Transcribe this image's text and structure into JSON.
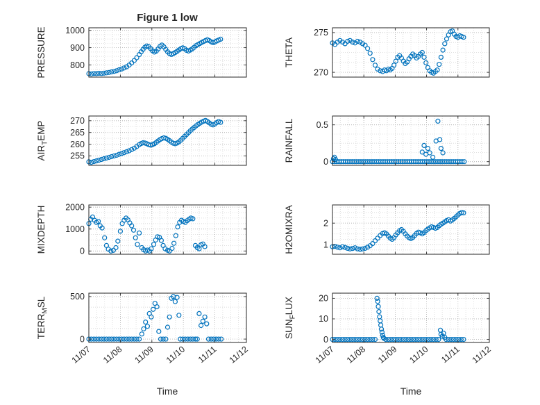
{
  "figure": {
    "title": "Figure 1 low",
    "marker_color": "#0072BD",
    "grid": true,
    "minor_grid": true
  },
  "x_axis": {
    "label": "Time",
    "xlim": [
      0,
      5
    ],
    "minor_step": 0.25,
    "tick_positions": [
      0,
      1,
      2,
      3,
      4,
      5
    ],
    "tick_labels": [
      "11/07",
      "11/08",
      "11/09",
      "11/10",
      "11/11",
      "11/12"
    ]
  },
  "chart_data": [
    {
      "type": "scatter",
      "name": "PRESSURE",
      "ylabel": {
        "pre": "PRESSURE",
        "sub": "",
        "post": ""
      },
      "ylim": [
        730,
        1015
      ],
      "yticks": [
        800,
        900,
        1000
      ],
      "ytick_labels": [
        "800",
        "900",
        "1000"
      ],
      "yminor_step": 25,
      "x": [
        0,
        0.08,
        0.16,
        0.24,
        0.32,
        0.4,
        0.48,
        0.56,
        0.64,
        0.72,
        0.8,
        0.88,
        0.96,
        1.04,
        1.12,
        1.2,
        1.28,
        1.36,
        1.44,
        1.52,
        1.6,
        1.66,
        1.72,
        1.78,
        1.84,
        1.9,
        1.96,
        2.02,
        2.08,
        2.14,
        2.2,
        2.26,
        2.32,
        2.38,
        2.44,
        2.5,
        2.56,
        2.62,
        2.68,
        2.74,
        2.8,
        2.86,
        2.92,
        2.98,
        3.04,
        3.1,
        3.16,
        3.22,
        3.28,
        3.34,
        3.4,
        3.46,
        3.52,
        3.58,
        3.64,
        3.7,
        3.76,
        3.82,
        3.88,
        3.94,
        4,
        4.06,
        4.12,
        4.18
      ],
      "y": [
        750,
        748,
        751,
        750,
        752,
        751,
        753,
        755,
        757,
        760,
        763,
        767,
        772,
        777,
        783,
        790,
        800,
        812,
        826,
        842,
        860,
        876,
        890,
        903,
        910,
        906,
        895,
        882,
        875,
        880,
        893,
        908,
        915,
        905,
        890,
        876,
        866,
        861,
        866,
        872,
        879,
        887,
        894,
        899,
        894,
        885,
        881,
        886,
        893,
        902,
        912,
        918,
        924,
        930,
        936,
        941,
        946,
        941,
        934,
        929,
        933,
        939,
        944,
        949
      ]
    },
    {
      "type": "scatter",
      "name": "AIR_TEMP",
      "ylabel": {
        "pre": "AIR",
        "sub": "T",
        "post": "EMP"
      },
      "ylim": [
        251,
        272
      ],
      "yticks": [
        255,
        260,
        265,
        270
      ],
      "ytick_labels": [
        "255",
        "260",
        "265",
        "270"
      ],
      "yminor_step": 2.5,
      "x": [
        0,
        0.08,
        0.16,
        0.24,
        0.32,
        0.4,
        0.48,
        0.56,
        0.64,
        0.72,
        0.8,
        0.88,
        0.96,
        1.04,
        1.12,
        1.2,
        1.28,
        1.36,
        1.44,
        1.52,
        1.6,
        1.66,
        1.72,
        1.78,
        1.84,
        1.9,
        1.96,
        2.02,
        2.08,
        2.14,
        2.2,
        2.26,
        2.32,
        2.38,
        2.44,
        2.5,
        2.56,
        2.62,
        2.68,
        2.74,
        2.8,
        2.86,
        2.92,
        2.98,
        3.04,
        3.1,
        3.16,
        3.22,
        3.28,
        3.34,
        3.4,
        3.46,
        3.52,
        3.58,
        3.64,
        3.7,
        3.76,
        3.82,
        3.88,
        3.94,
        4,
        4.06,
        4.12,
        4.18
      ],
      "y": [
        252.5,
        252.3,
        252.6,
        252.9,
        253.2,
        253.5,
        253.8,
        254.1,
        254.4,
        254.7,
        255,
        255.3,
        255.7,
        256,
        256.4,
        256.8,
        257.2,
        257.7,
        258.3,
        259,
        259.8,
        260.3,
        260.6,
        260.5,
        260.2,
        259.8,
        259.6,
        259.8,
        260.2,
        260.8,
        261.4,
        262,
        262.4,
        262.7,
        262.5,
        262.1,
        261.5,
        260.9,
        260.4,
        260.2,
        260.5,
        261,
        261.7,
        262.5,
        263.3,
        264.1,
        264.9,
        265.7,
        266.4,
        267.1,
        267.8,
        268.4,
        268.9,
        269.4,
        269.8,
        270.1,
        269.7,
        269.1,
        268.5,
        268.2,
        268.6,
        269.2,
        269.7,
        269.3
      ]
    },
    {
      "type": "scatter",
      "name": "MIXDEPTH",
      "ylabel": {
        "pre": "MIXDEPTH",
        "sub": "",
        "post": ""
      },
      "ylim": [
        -150,
        2100
      ],
      "yticks": [
        0,
        1000,
        2000
      ],
      "ytick_labels": [
        "0",
        "1000",
        "2000"
      ],
      "yminor_step": 250,
      "x": [
        0,
        0.06,
        0.12,
        0.18,
        0.24,
        0.3,
        0.36,
        0.42,
        0.5,
        0.56,
        0.62,
        0.7,
        0.78,
        0.86,
        0.92,
        1,
        1.06,
        1.12,
        1.18,
        1.24,
        1.3,
        1.36,
        1.42,
        1.48,
        1.54,
        1.6,
        1.68,
        1.74,
        1.8,
        1.86,
        1.92,
        1.98,
        2.06,
        2.12,
        2.18,
        2.24,
        2.3,
        2.36,
        2.42,
        2.5,
        2.56,
        2.64,
        2.7,
        2.76,
        2.82,
        2.88,
        2.94,
        3,
        3.06,
        3.12,
        3.18,
        3.24,
        3.3,
        3.38,
        3.44,
        3.5,
        3.56,
        3.62,
        3.68
      ],
      "y": [
        1250,
        1450,
        1550,
        1400,
        1300,
        1350,
        1150,
        1050,
        600,
        250,
        80,
        0,
        30,
        150,
        450,
        900,
        1250,
        1400,
        1500,
        1420,
        1280,
        1150,
        950,
        600,
        300,
        820,
        150,
        60,
        0,
        40,
        0,
        100,
        300,
        500,
        650,
        620,
        480,
        250,
        100,
        30,
        0,
        120,
        350,
        700,
        1100,
        1300,
        1400,
        1350,
        1300,
        1380,
        1450,
        1500,
        1470,
        250,
        150,
        100,
        280,
        320,
        200
      ]
    },
    {
      "type": "scatter",
      "name": "TERR_MSL",
      "ylabel": {
        "pre": "TERR",
        "sub": "M",
        "post": "SL"
      },
      "ylim": [
        -40,
        540
      ],
      "yticks": [
        0,
        500
      ],
      "ytick_labels": [
        "0",
        "500"
      ],
      "yminor_step": 125,
      "x": [
        0,
        0.08,
        0.16,
        0.24,
        0.32,
        0.4,
        0.48,
        0.56,
        0.64,
        0.72,
        0.8,
        0.88,
        0.96,
        1.04,
        1.12,
        1.2,
        1.28,
        1.36,
        1.44,
        1.52,
        1.6,
        1.68,
        1.74,
        1.8,
        1.86,
        1.92,
        1.98,
        2.04,
        2.1,
        2.16,
        2.22,
        2.28,
        2.36,
        2.44,
        2.5,
        2.56,
        2.62,
        2.68,
        2.74,
        2.8,
        2.86,
        2.9,
        2.98,
        3.06,
        3.14,
        3.22,
        3.3,
        3.38,
        3.44,
        3.5,
        3.56,
        3.62,
        3.68,
        3.74,
        3.8,
        3.88,
        3.96,
        4.04,
        4.12,
        4.2
      ],
      "y": [
        0,
        0,
        0,
        0,
        0,
        0,
        0,
        0,
        0,
        0,
        0,
        0,
        0,
        0,
        0,
        0,
        0,
        0,
        0,
        0,
        0,
        60,
        120,
        200,
        150,
        300,
        260,
        350,
        420,
        380,
        90,
        0,
        0,
        0,
        140,
        260,
        480,
        500,
        440,
        490,
        280,
        0,
        0,
        0,
        0,
        0,
        0,
        0,
        0,
        300,
        160,
        210,
        260,
        180,
        0,
        0,
        0,
        0,
        0,
        0
      ]
    },
    {
      "type": "scatter",
      "name": "THETA",
      "ylabel": {
        "pre": "THETA",
        "sub": "",
        "post": ""
      },
      "ylim": [
        269.4,
        275.6
      ],
      "yticks": [
        270,
        275
      ],
      "ytick_labels": [
        "270",
        "275"
      ],
      "yminor_step": 1.25,
      "x": [
        0,
        0.08,
        0.16,
        0.24,
        0.32,
        0.4,
        0.48,
        0.56,
        0.64,
        0.72,
        0.8,
        0.88,
        0.96,
        1.04,
        1.12,
        1.2,
        1.28,
        1.36,
        1.44,
        1.52,
        1.6,
        1.66,
        1.72,
        1.78,
        1.84,
        1.9,
        1.96,
        2.02,
        2.08,
        2.14,
        2.2,
        2.26,
        2.32,
        2.38,
        2.44,
        2.5,
        2.56,
        2.62,
        2.68,
        2.74,
        2.8,
        2.86,
        2.92,
        2.98,
        3.04,
        3.1,
        3.16,
        3.22,
        3.28,
        3.34,
        3.4,
        3.46,
        3.52,
        3.58,
        3.64,
        3.7,
        3.76,
        3.82,
        3.88,
        3.94,
        4,
        4.06,
        4.12,
        4.18
      ],
      "y": [
        273.7,
        273.5,
        273.8,
        274,
        273.8,
        273.6,
        273.9,
        274,
        273.8,
        273.7,
        273.9,
        273.8,
        273.6,
        273.4,
        273,
        272.4,
        271.6,
        270.9,
        270.4,
        270.2,
        270.1,
        270.3,
        270.2,
        270.4,
        270.3,
        270.5,
        270.9,
        271.4,
        271.9,
        272.1,
        271.8,
        271.4,
        271.1,
        271.3,
        271.7,
        272,
        272.3,
        272.1,
        271.8,
        272,
        272.3,
        272.5,
        271.9,
        271.2,
        270.6,
        270.2,
        270,
        269.9,
        270.1,
        270.3,
        271,
        271.9,
        272.8,
        273.6,
        274.2,
        274.7,
        275.1,
        275.2,
        274.8,
        274.5,
        274.4,
        274.6,
        274.5,
        274.4
      ]
    },
    {
      "type": "scatter",
      "name": "RAINFALL",
      "ylabel": {
        "pre": "RAINFALL",
        "sub": "",
        "post": ""
      },
      "ylim": [
        -0.05,
        0.62
      ],
      "yticks": [
        0,
        0.5
      ],
      "ytick_labels": [
        "0",
        "0.5"
      ],
      "yminor_step": 0.125,
      "x": [
        0,
        0.07,
        0.14,
        0.21,
        0.28,
        0.35,
        0.42,
        0.49,
        0.56,
        0.63,
        0.7,
        0.77,
        0.84,
        0.91,
        0.98,
        1.05,
        1.12,
        1.19,
        1.26,
        1.33,
        1.4,
        1.47,
        1.54,
        1.61,
        1.68,
        1.75,
        1.82,
        1.89,
        1.96,
        2.03,
        2.1,
        2.17,
        2.24,
        2.31,
        2.38,
        2.45,
        2.52,
        2.59,
        2.66,
        2.73,
        2.8,
        2.87,
        2.94,
        3.01,
        3.08,
        3.15,
        3.22,
        3.29,
        3.36,
        3.43,
        3.5,
        3.57,
        3.64,
        3.71,
        3.78,
        3.85,
        3.92,
        3.99,
        4.06,
        4.13,
        4.2,
        0.03,
        0.06,
        0.1,
        2.86,
        2.92,
        2.98,
        3.04,
        3.1,
        3.2,
        3.3,
        3.36,
        3.42,
        3.46,
        3.52
      ],
      "y": [
        0,
        0,
        0,
        0,
        0,
        0,
        0,
        0,
        0,
        0,
        0,
        0,
        0,
        0,
        0,
        0,
        0,
        0,
        0,
        0,
        0,
        0,
        0,
        0,
        0,
        0,
        0,
        0,
        0,
        0,
        0,
        0,
        0,
        0,
        0,
        0,
        0,
        0,
        0,
        0,
        0,
        0,
        0,
        0,
        0,
        0,
        0,
        0,
        0,
        0,
        0,
        0,
        0,
        0,
        0,
        0,
        0,
        0,
        0,
        0,
        0,
        0.04,
        0.06,
        0.03,
        0.13,
        0.22,
        0.1,
        0.18,
        0.12,
        0.06,
        0.28,
        0.55,
        0.3,
        0.18,
        0.12
      ]
    },
    {
      "type": "scatter",
      "name": "H2OMIXRA",
      "ylabel": {
        "pre": "H2OMIXRA",
        "sub": "",
        "post": ""
      },
      "ylim": [
        0.55,
        2.85
      ],
      "yticks": [
        1,
        2
      ],
      "ytick_labels": [
        "1",
        "2"
      ],
      "yminor_step": 0.25,
      "x": [
        0,
        0.08,
        0.16,
        0.24,
        0.32,
        0.4,
        0.48,
        0.56,
        0.64,
        0.72,
        0.8,
        0.88,
        0.96,
        1.04,
        1.12,
        1.2,
        1.28,
        1.36,
        1.44,
        1.52,
        1.6,
        1.66,
        1.72,
        1.78,
        1.84,
        1.9,
        1.96,
        2.02,
        2.08,
        2.14,
        2.2,
        2.26,
        2.32,
        2.38,
        2.44,
        2.5,
        2.56,
        2.62,
        2.68,
        2.74,
        2.8,
        2.86,
        2.92,
        2.98,
        3.04,
        3.1,
        3.16,
        3.22,
        3.28,
        3.34,
        3.4,
        3.46,
        3.52,
        3.58,
        3.64,
        3.7,
        3.76,
        3.82,
        3.88,
        3.94,
        4,
        4.06,
        4.12,
        4.18
      ],
      "y": [
        0.9,
        0.92,
        0.88,
        0.85,
        0.9,
        0.87,
        0.83,
        0.8,
        0.82,
        0.85,
        0.8,
        0.78,
        0.8,
        0.83,
        0.88,
        0.95,
        1.05,
        1.18,
        1.3,
        1.42,
        1.52,
        1.55,
        1.5,
        1.4,
        1.3,
        1.25,
        1.32,
        1.45,
        1.55,
        1.65,
        1.7,
        1.62,
        1.5,
        1.4,
        1.32,
        1.28,
        1.33,
        1.42,
        1.52,
        1.58,
        1.55,
        1.5,
        1.56,
        1.65,
        1.72,
        1.78,
        1.83,
        1.8,
        1.76,
        1.8,
        1.88,
        1.95,
        2,
        2.06,
        2.12,
        2.16,
        2.1,
        2.15,
        2.22,
        2.3,
        2.38,
        2.45,
        2.5,
        2.48
      ]
    },
    {
      "type": "scatter",
      "name": "SUN_FLUX",
      "ylabel": {
        "pre": "SUN",
        "sub": "F",
        "post": "LUX"
      },
      "ylim": [
        -1.5,
        22.5
      ],
      "yticks": [
        0,
        10,
        20
      ],
      "ytick_labels": [
        "0",
        "10",
        "20"
      ],
      "yminor_step": 5,
      "x": [
        0,
        0.08,
        0.16,
        0.24,
        0.32,
        0.4,
        0.48,
        0.56,
        0.64,
        0.72,
        0.8,
        0.88,
        0.96,
        1.04,
        1.12,
        1.2,
        1.28,
        1.36,
        1.42,
        1.44,
        1.46,
        1.48,
        1.5,
        1.52,
        1.54,
        1.56,
        1.58,
        1.6,
        1.62,
        1.64,
        1.7,
        1.78,
        1.86,
        1.94,
        2.02,
        2.1,
        2.18,
        2.26,
        2.34,
        2.42,
        2.5,
        2.58,
        2.66,
        2.74,
        2.82,
        2.9,
        2.98,
        3.06,
        3.14,
        3.22,
        3.3,
        3.38,
        3.44,
        3.46,
        3.5,
        3.54,
        3.58,
        3.62,
        3.7,
        3.78,
        3.86,
        3.94,
        4.02,
        4.1,
        4.18
      ],
      "y": [
        0,
        0,
        0,
        0,
        0,
        0,
        0,
        0,
        0,
        0,
        0,
        0,
        0,
        0,
        0,
        0,
        0,
        0,
        20,
        18.5,
        16,
        13.5,
        11,
        9,
        7,
        5,
        3.5,
        2,
        1,
        0.5,
        0,
        0,
        0,
        0,
        0,
        0,
        0,
        0,
        0,
        0,
        0,
        0,
        0,
        0,
        0,
        0,
        0,
        0,
        0,
        0,
        0,
        0,
        4.5,
        2.5,
        1.5,
        3,
        1,
        0,
        0,
        0,
        0,
        0,
        0,
        0,
        0
      ]
    }
  ]
}
